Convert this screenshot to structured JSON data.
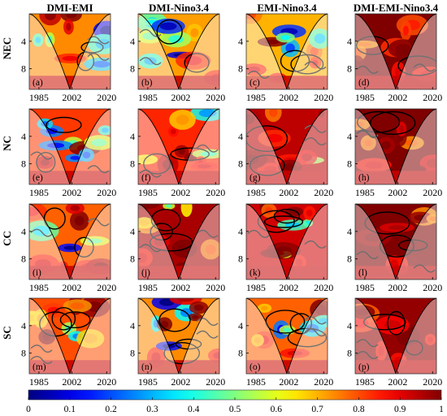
{
  "chart_data": {
    "type": "heatmap",
    "description_words": "wavelet coherence grid",
    "columns": [
      "DMI-EMI",
      "DMI-Nino3.4",
      "EMI-Nino3.4",
      "DMI-EMI-Nino3.4"
    ],
    "rows": [
      "NEC",
      "NC",
      "CC",
      "SC"
    ],
    "panel_labels": [
      [
        "(a)",
        "(b)",
        "(c)",
        "(d)"
      ],
      [
        "(e)",
        "(f)",
        "(g)",
        "(h)"
      ],
      [
        "(i)",
        "(j)",
        "(k)",
        "(l)"
      ],
      [
        "(m)",
        "(n)",
        "(o)",
        "(p)"
      ]
    ],
    "x_ticks": [
      1985,
      2002,
      2020
    ],
    "x_range": [
      1980,
      2022
    ],
    "y_ticks": [
      4,
      8
    ],
    "y_range": [
      0,
      11
    ],
    "y_reversed": true,
    "colorbar": {
      "min": 0,
      "max": 1,
      "ticks": [
        "0",
        "0.1",
        "0.2",
        "0.3",
        "0.4",
        "0.5",
        "0.6",
        "0.7",
        "0.8",
        "0.9",
        "1"
      ],
      "colormap": "jet"
    },
    "panel_mean_coherence": [
      [
        0.62,
        0.6,
        0.58,
        0.88
      ],
      [
        0.7,
        0.72,
        0.82,
        0.93
      ],
      [
        0.66,
        0.84,
        0.8,
        0.92
      ],
      [
        0.68,
        0.62,
        0.66,
        0.86
      ]
    ]
  }
}
